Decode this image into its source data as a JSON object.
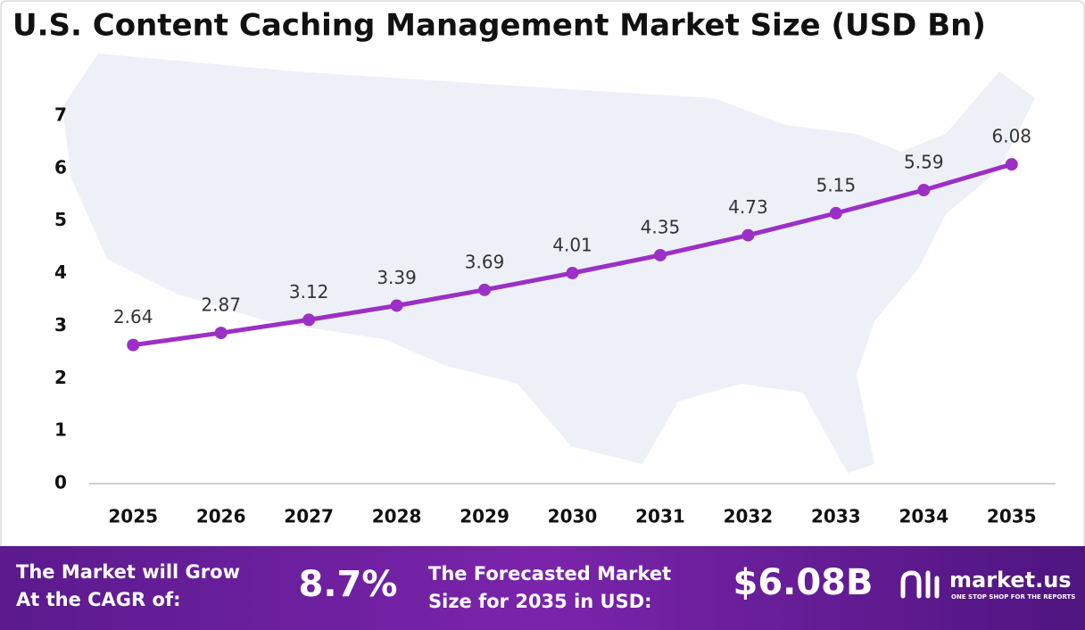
{
  "chart_data": {
    "type": "line",
    "title": "U.S. Content Caching Management Market Size (USD Bn)",
    "categories": [
      "2025",
      "2026",
      "2027",
      "2028",
      "2029",
      "2030",
      "2031",
      "2032",
      "2033",
      "2034",
      "2035"
    ],
    "values": [
      2.64,
      2.87,
      3.12,
      3.39,
      3.69,
      4.01,
      4.35,
      4.73,
      5.15,
      5.59,
      6.08
    ],
    "color": "#9c2fc6",
    "ylim": [
      0,
      7
    ],
    "yticks": [
      0,
      1,
      2,
      3,
      4,
      5,
      6,
      7
    ],
    "grid": false
  },
  "footer": {
    "cagr_text": [
      "The Market will Grow",
      "At the CAGR of:"
    ],
    "cagr_value": "8.7%",
    "forecast_text": [
      "The Forecasted Market",
      "Size for 2035 in USD:"
    ],
    "forecast_value": "$6.08B",
    "brand": "market.us",
    "tagline": "ONE STOP SHOP FOR THE REPORTS"
  }
}
